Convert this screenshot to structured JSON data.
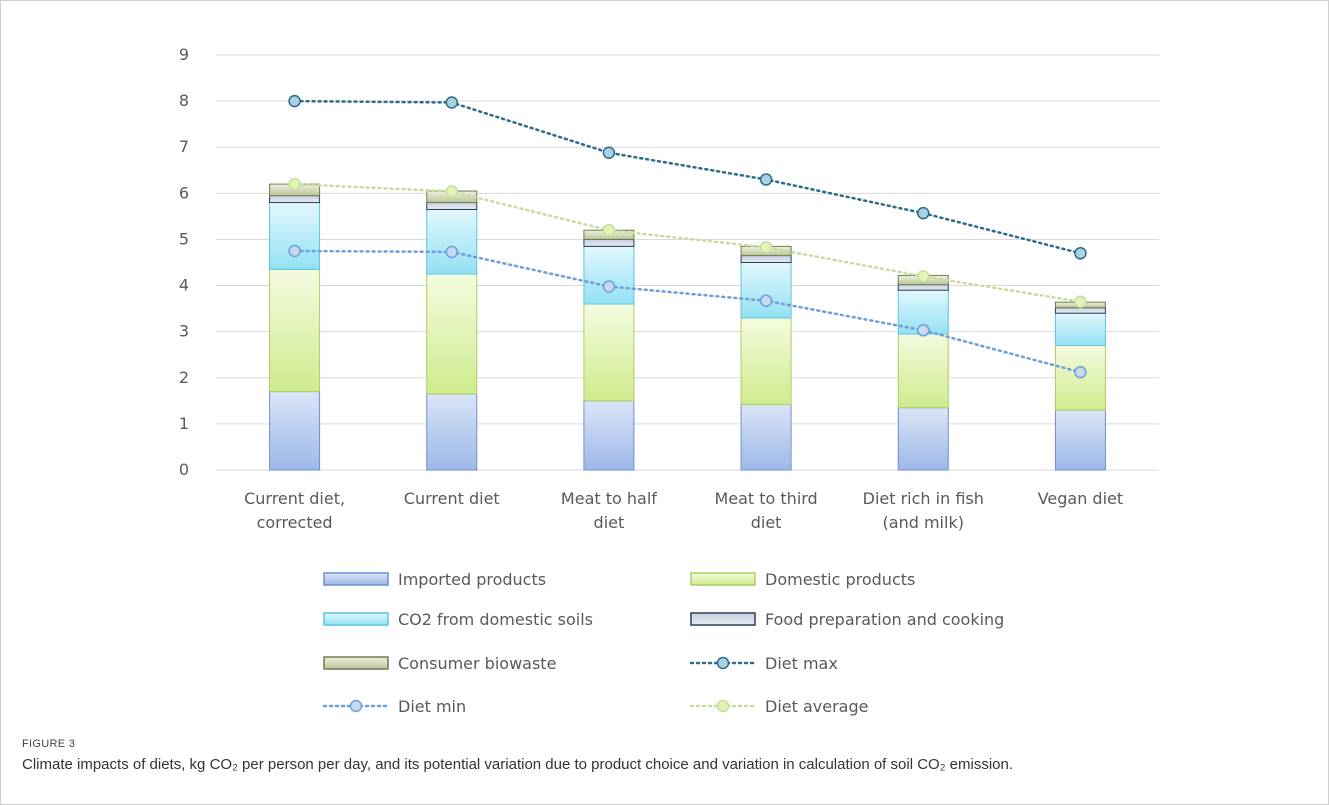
{
  "figure": {
    "label": "FIGURE 3",
    "caption": "Climate impacts of diets, kg CO₂ per person per day, and its potential variation due to product choice and variation in calculation of soil CO₂ emission."
  },
  "chart_data": {
    "type": "bar",
    "stacked": true,
    "title": "",
    "xlabel": "",
    "ylabel": "",
    "ylim": [
      0,
      9
    ],
    "yticks": [
      0,
      1,
      2,
      3,
      4,
      5,
      6,
      7,
      8,
      9
    ],
    "grid": true,
    "legend_position": "bottom",
    "categories": [
      [
        "Current diet,",
        "corrected"
      ],
      [
        "Current diet"
      ],
      [
        "Meat to half",
        "diet"
      ],
      [
        "Meat to third",
        "diet"
      ],
      [
        "Diet rich in fish",
        "(and milk)"
      ],
      [
        "Vegan diet"
      ]
    ],
    "series": [
      {
        "name": "Imported products",
        "kind": "bar",
        "fill_top": "#dbe5f7",
        "fill_bottom": "#9db8e8",
        "stroke": "#6f8fcf",
        "values": [
          1.7,
          1.65,
          1.5,
          1.42,
          1.35,
          1.3
        ]
      },
      {
        "name": "Domestic products",
        "kind": "bar",
        "fill_top": "#f4fbe0",
        "fill_bottom": "#cfeb8d",
        "stroke": "#a9cf63",
        "values": [
          2.65,
          2.6,
          2.1,
          1.88,
          1.6,
          1.4
        ]
      },
      {
        "name": "CO2 from domestic soils",
        "kind": "bar",
        "fill_top": "#e3f8fd",
        "fill_bottom": "#93e1f3",
        "stroke": "#5cc4e0",
        "values": [
          1.45,
          1.4,
          1.25,
          1.2,
          0.95,
          0.7
        ]
      },
      {
        "name": "Food preparation and cooking",
        "kind": "bar",
        "fill_top": "#c7d0e0",
        "fill_bottom": "#e6ebf3",
        "stroke": "#2c3e5c",
        "values": [
          0.15,
          0.15,
          0.15,
          0.15,
          0.12,
          0.12
        ]
      },
      {
        "name": "Consumer biowaste",
        "kind": "bar",
        "fill_top": "#eef2e0",
        "fill_bottom": "#b9c49a",
        "stroke": "#6e7d4e",
        "values": [
          0.25,
          0.25,
          0.2,
          0.2,
          0.2,
          0.12
        ]
      },
      {
        "name": "Diet max",
        "kind": "line",
        "color": "#2e6b8a",
        "marker_fill": "#a9d3e3",
        "values": [
          8.0,
          7.97,
          6.88,
          6.3,
          5.57,
          4.7
        ]
      },
      {
        "name": "Diet min",
        "kind": "line",
        "color": "#6f9fd8",
        "marker_fill": "#c8d9f0",
        "values": [
          4.75,
          4.73,
          3.98,
          3.67,
          3.03,
          2.12
        ]
      },
      {
        "name": "Diet average",
        "kind": "line",
        "color": "#c8dca0",
        "marker_fill": "#e3f3b5",
        "values": [
          6.2,
          6.04,
          5.2,
          4.83,
          4.2,
          3.65
        ]
      }
    ]
  }
}
